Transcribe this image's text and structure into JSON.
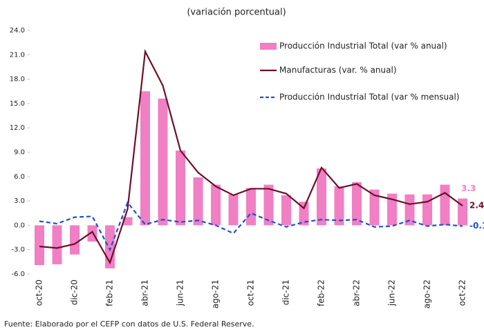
{
  "chart_data": {
    "type": "bar-line",
    "title": "(variación porcentual)",
    "source": "Fuente: Elaborado por el CEFP con datos de U.S. Federal Reserve.",
    "categories": [
      "oct-20",
      null,
      "dic-20",
      null,
      "feb-21",
      null,
      "abr-21",
      null,
      "jun-21",
      null,
      "ago-21",
      null,
      "oct-21",
      null,
      "dic-21",
      null,
      "feb-22",
      null,
      "abr-22",
      null,
      "jun-22",
      null,
      "ago-22",
      null,
      "oct-22"
    ],
    "ylim": [
      -6,
      24
    ],
    "yticks": [
      {
        "value": -6,
        "label": "-6.0"
      },
      {
        "value": -3,
        "label": "-3.0"
      },
      {
        "value": 0,
        "label": "0.0"
      },
      {
        "value": 3,
        "label": "3.0"
      },
      {
        "value": 6,
        "label": "6.0"
      },
      {
        "value": 9,
        "label": "9.0"
      },
      {
        "value": 12,
        "label": "12.0"
      },
      {
        "value": 15,
        "label": "15.0"
      },
      {
        "value": 18,
        "label": "18.0"
      },
      {
        "value": 21,
        "label": "21.0"
      },
      {
        "value": 24,
        "label": "24.0"
      }
    ],
    "series": [
      {
        "name": "Producción Industrial Total (var % anual)",
        "kind": "bar",
        "color": "#f07fc4",
        "values": [
          -4.9,
          -4.8,
          -3.6,
          -2.0,
          -5.3,
          1.0,
          16.5,
          15.6,
          9.2,
          5.9,
          5.0,
          3.8,
          4.6,
          5.0,
          3.7,
          2.9,
          7.0,
          4.8,
          5.3,
          4.4,
          3.9,
          3.8,
          3.8,
          5.0,
          3.3
        ]
      },
      {
        "name": "Manufacturas (var. % anual)",
        "kind": "line",
        "color": "#6b0f2a",
        "values": [
          -2.6,
          -2.8,
          -2.3,
          -0.8,
          -4.6,
          2.0,
          21.4,
          17.2,
          9.2,
          6.5,
          4.8,
          3.7,
          4.5,
          4.5,
          3.9,
          2.1,
          7.1,
          4.6,
          5.1,
          3.7,
          3.2,
          2.6,
          2.9,
          4.0,
          2.4
        ]
      },
      {
        "name": "Producción Industrial Total (var % mensual)",
        "kind": "dashed",
        "color": "#1f4fd0",
        "values": [
          0.5,
          0.2,
          1.0,
          1.1,
          -3.0,
          2.8,
          0.1,
          0.7,
          0.4,
          0.6,
          0.0,
          -1.0,
          1.5,
          0.6,
          -0.2,
          0.4,
          0.7,
          0.6,
          0.7,
          -0.2,
          -0.1,
          0.6,
          -0.1,
          0.1,
          -0.1
        ]
      }
    ]
  }
}
